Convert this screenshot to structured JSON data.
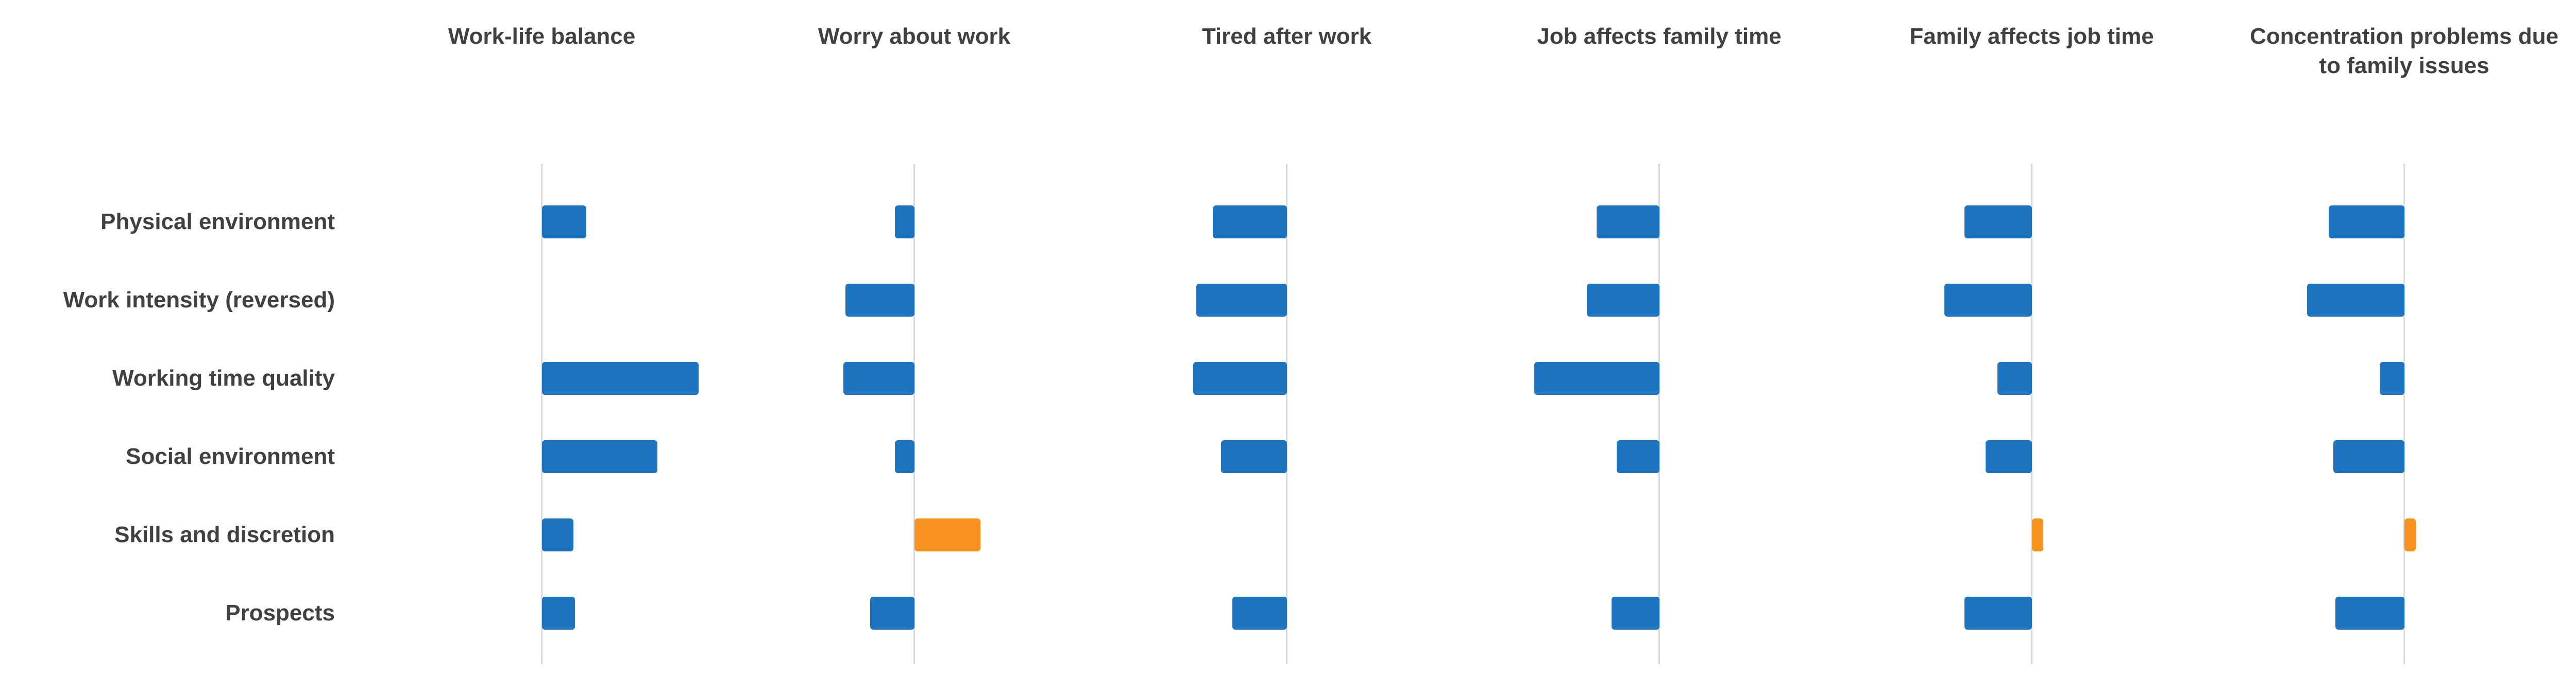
{
  "chart_data": {
    "type": "bar",
    "orientation": "horizontal-diverging",
    "note": "no numeric axis labels shown; values are relative bar lengths around a zero line (positive = right, negative = left)",
    "grid": false,
    "legend": null,
    "categories": [
      "Physical environment",
      "Work intensity (reversed)",
      "Working time quality",
      "Social environment",
      "Skills and discretion",
      "Prospects"
    ],
    "panels": [
      {
        "title": "Work-life balance",
        "values": [
          0.27,
          0,
          0.95,
          0.7,
          0.19,
          0.2
        ],
        "colors": [
          "blue",
          "blue",
          "blue",
          "blue",
          "blue",
          "blue"
        ]
      },
      {
        "title": "Worry about work",
        "values": [
          -0.12,
          -0.42,
          -0.43,
          -0.12,
          0.4,
          -0.27
        ],
        "colors": [
          "blue",
          "blue",
          "blue",
          "blue",
          "orange",
          "blue"
        ]
      },
      {
        "title": "Tired after work",
        "values": [
          -0.45,
          -0.55,
          -0.57,
          -0.4,
          0,
          -0.33
        ],
        "colors": [
          "blue",
          "blue",
          "blue",
          "blue",
          "blue",
          "blue"
        ]
      },
      {
        "title": "Job affects family time",
        "values": [
          -0.38,
          -0.44,
          -0.76,
          -0.26,
          0,
          -0.29
        ],
        "colors": [
          "blue",
          "blue",
          "blue",
          "blue",
          "blue",
          "blue"
        ]
      },
      {
        "title": "Family affects job time",
        "values": [
          -0.41,
          -0.53,
          -0.21,
          -0.28,
          0.07,
          -0.41
        ],
        "colors": [
          "blue",
          "blue",
          "blue",
          "blue",
          "orange",
          "blue"
        ]
      },
      {
        "title": "Concentration problems due to family issues",
        "values": [
          -0.46,
          -0.59,
          -0.15,
          -0.43,
          0.07,
          -0.42
        ],
        "colors": [
          "blue",
          "blue",
          "blue",
          "blue",
          "orange",
          "blue"
        ]
      }
    ],
    "palette": {
      "blue": "#1f74c0",
      "orange": "#f7931e",
      "axis_line": "#d9d9d9",
      "text": "#404040"
    }
  }
}
